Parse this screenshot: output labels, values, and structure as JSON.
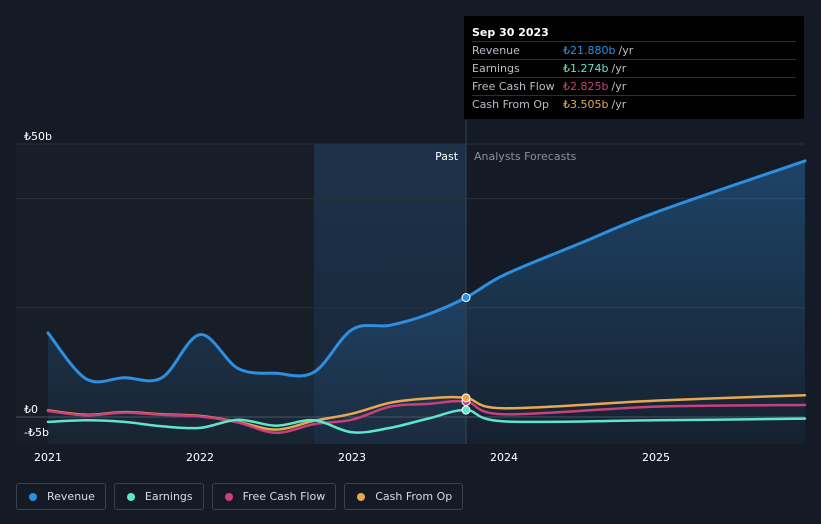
{
  "chart_data": {
    "type": "line",
    "y_unit_prefix": "₺",
    "ylim": [
      -5,
      50
    ],
    "xlim": [
      2021.0,
      2025.98
    ],
    "divider_x": 2023.75,
    "past_region_start": 2022.75,
    "y_ticks": [
      {
        "value": 50,
        "label": "₺50b"
      },
      {
        "value": 0,
        "label": "₺0"
      },
      {
        "value": -5,
        "label": "-₺5b"
      }
    ],
    "x_ticks": [
      {
        "value": 2021,
        "label": "2021"
      },
      {
        "value": 2022,
        "label": "2022"
      },
      {
        "value": 2023,
        "label": "2023"
      },
      {
        "value": 2024,
        "label": "2024"
      },
      {
        "value": 2025,
        "label": "2025"
      }
    ],
    "region_labels": {
      "past": "Past",
      "forecast": "Analysts Forecasts"
    },
    "series": [
      {
        "name": "Revenue",
        "key": "revenue",
        "color": "#2d8fe0",
        "fill": true,
        "points": [
          [
            2021.0,
            15.4
          ],
          [
            2021.25,
            7.0
          ],
          [
            2021.5,
            7.2
          ],
          [
            2021.75,
            7.2
          ],
          [
            2022.0,
            15.1
          ],
          [
            2022.25,
            8.9
          ],
          [
            2022.5,
            8.0
          ],
          [
            2022.75,
            8.2
          ],
          [
            2023.0,
            16.0
          ],
          [
            2023.25,
            16.8
          ],
          [
            2023.5,
            18.8
          ],
          [
            2023.75,
            21.88
          ],
          [
            2024.0,
            26.0
          ],
          [
            2024.5,
            31.8
          ],
          [
            2025.0,
            37.5
          ],
          [
            2025.98,
            46.9
          ]
        ]
      },
      {
        "name": "Earnings",
        "key": "earnings",
        "color": "#5ee6c8",
        "fill": false,
        "points": [
          [
            2021.0,
            -0.9
          ],
          [
            2021.25,
            -0.6
          ],
          [
            2021.5,
            -0.9
          ],
          [
            2021.75,
            -1.7
          ],
          [
            2022.0,
            -2.0
          ],
          [
            2022.25,
            -0.5
          ],
          [
            2022.5,
            -1.6
          ],
          [
            2022.75,
            -0.6
          ],
          [
            2023.0,
            -2.8
          ],
          [
            2023.25,
            -2.0
          ],
          [
            2023.5,
            -0.3
          ],
          [
            2023.75,
            1.274
          ],
          [
            2024.0,
            -0.8
          ],
          [
            2025.0,
            -0.6
          ],
          [
            2025.98,
            -0.3
          ]
        ]
      },
      {
        "name": "Free Cash Flow",
        "key": "fcf",
        "color": "#c9417b",
        "fill": false,
        "points": [
          [
            2021.0,
            1.1
          ],
          [
            2021.25,
            0.3
          ],
          [
            2021.5,
            0.8
          ],
          [
            2021.75,
            0.4
          ],
          [
            2022.0,
            0.1
          ],
          [
            2022.25,
            -1.0
          ],
          [
            2022.5,
            -2.9
          ],
          [
            2022.75,
            -1.3
          ],
          [
            2023.0,
            -0.5
          ],
          [
            2023.25,
            1.9
          ],
          [
            2023.5,
            2.4
          ],
          [
            2023.75,
            2.825
          ],
          [
            2024.0,
            0.5
          ],
          [
            2025.0,
            1.9
          ],
          [
            2025.98,
            2.2
          ]
        ]
      },
      {
        "name": "Cash From Op",
        "key": "cfo",
        "color": "#e7a94f",
        "fill": false,
        "points": [
          [
            2021.0,
            1.2
          ],
          [
            2021.25,
            0.4
          ],
          [
            2021.5,
            0.9
          ],
          [
            2021.75,
            0.5
          ],
          [
            2022.0,
            0.2
          ],
          [
            2022.25,
            -0.9
          ],
          [
            2022.5,
            -2.3
          ],
          [
            2022.75,
            -0.7
          ],
          [
            2023.0,
            0.6
          ],
          [
            2023.25,
            2.6
          ],
          [
            2023.5,
            3.4
          ],
          [
            2023.75,
            3.505
          ],
          [
            2024.0,
            1.6
          ],
          [
            2025.0,
            3.0
          ],
          [
            2025.98,
            4.0
          ]
        ]
      }
    ]
  },
  "tooltip": {
    "date": "Sep 30 2023",
    "unit": "/yr",
    "rows": [
      {
        "label": "Revenue",
        "value": "₺21.880b",
        "color": "#2d8fe0"
      },
      {
        "label": "Earnings",
        "value": "₺1.274b",
        "color": "#5ee6c8"
      },
      {
        "label": "Free Cash Flow",
        "value": "₺2.825b",
        "color": "#c9417b"
      },
      {
        "label": "Cash From Op",
        "value": "₺3.505b",
        "color": "#e7a94f"
      }
    ]
  },
  "legend": [
    {
      "label": "Revenue",
      "color": "#2d8fe0"
    },
    {
      "label": "Earnings",
      "color": "#5ee6c8"
    },
    {
      "label": "Free Cash Flow",
      "color": "#c9417b"
    },
    {
      "label": "Cash From Op",
      "color": "#e7a94f"
    }
  ]
}
